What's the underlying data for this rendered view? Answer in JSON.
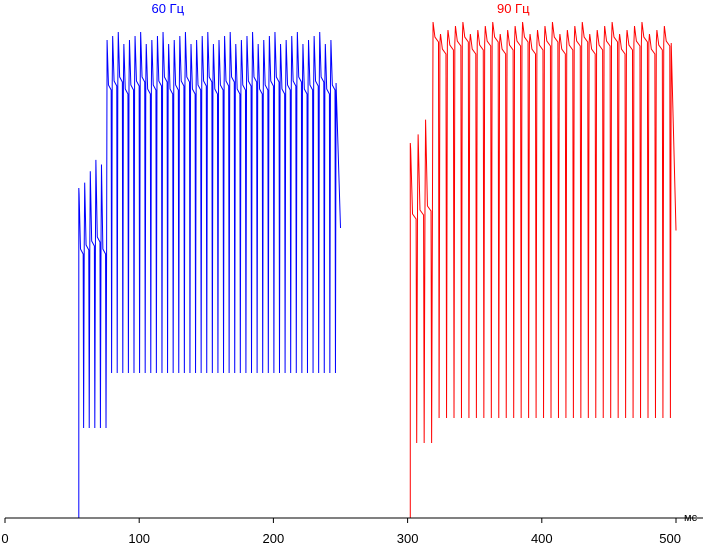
{
  "chart_data": {
    "type": "line",
    "xlabel": "",
    "ylabel": "",
    "x_unit": "мс",
    "xlim": [
      0,
      500
    ],
    "ylim": [
      0,
      1
    ],
    "grid": false,
    "x_ticks": [
      0,
      100,
      200,
      300,
      400,
      500
    ],
    "series": [
      {
        "name": "60 Гц",
        "color": "#0000ff",
        "start_ms": 0,
        "end_ms": 250,
        "rise_ms": 55,
        "steady_start_ms": 72,
        "period_ms": 4.17,
        "baseline": 0.0,
        "initial_peak": 0.66,
        "initial_settle": 0.55,
        "initial_trough": 0.18,
        "steady_peak": 0.96,
        "steady_settle": 0.87,
        "steady_trough": 0.29
      },
      {
        "name": "90 Гц",
        "color": "#ff0000",
        "start_ms": 250,
        "end_ms": 500,
        "rise_ms": 302,
        "steady_start_ms": 314,
        "period_ms": 5.56,
        "baseline": 0.0,
        "initial_peak": 0.75,
        "initial_settle": 0.62,
        "initial_trough": 0.15,
        "steady_peak": 0.98,
        "steady_settle": 0.95,
        "steady_trough": 0.2
      }
    ]
  }
}
